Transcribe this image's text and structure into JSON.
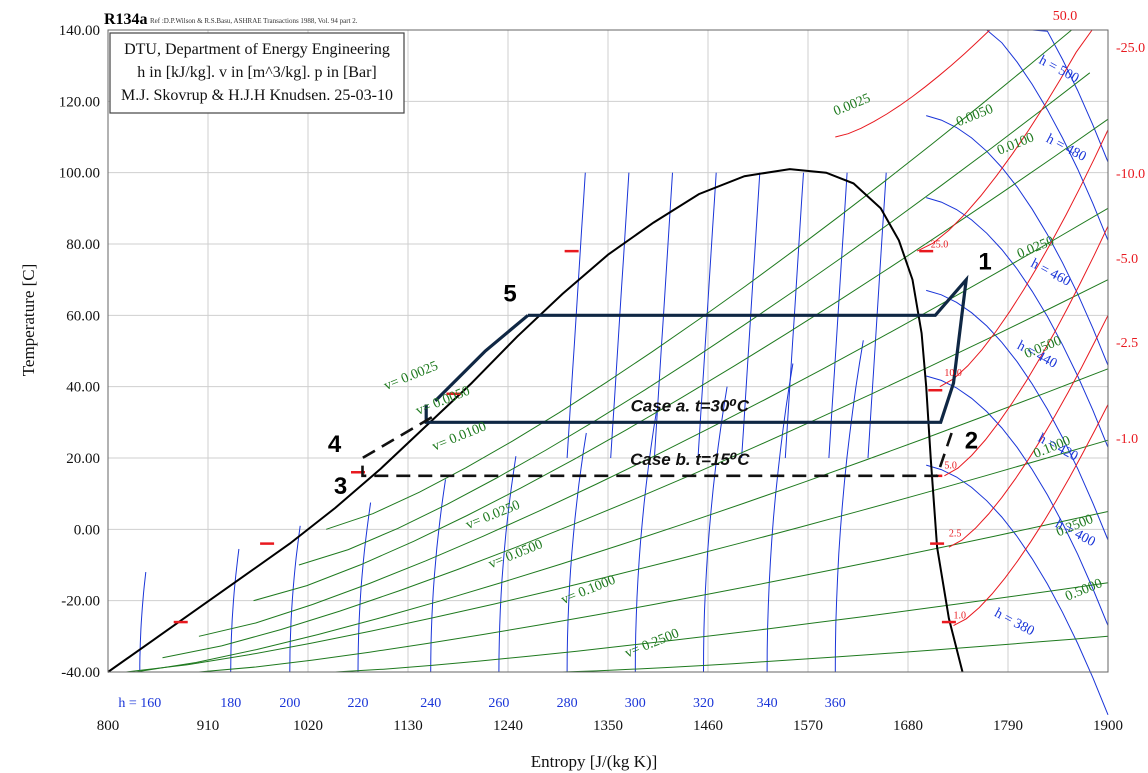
{
  "chart_data": {
    "type": "line",
    "title": "R134a",
    "reference": "Ref :D.P.Wilson & R.S.Basu, ASHRAE Transactions 1988, Vol. 94 part 2.",
    "info_box": [
      "DTU, Department of Energy Engineering",
      "h in [kJ/kg]. v in [m^3/kg]. p in [Bar]",
      "M.J. Skovrup & H.J.H Knudsen. 25-03-10"
    ],
    "xlabel": "Entropy [J/(kg K)]",
    "ylabel": "Temperature [C]",
    "xlim": [
      800,
      1900
    ],
    "ylim": [
      -40,
      140
    ],
    "grid": true,
    "x_ticks": [
      {
        "v": 800,
        "label": "800"
      },
      {
        "v": 910,
        "label": "910"
      },
      {
        "v": 1020,
        "label": "1020"
      },
      {
        "v": 1130,
        "label": "1130"
      },
      {
        "v": 1240,
        "label": "1240"
      },
      {
        "v": 1350,
        "label": "1350"
      },
      {
        "v": 1460,
        "label": "1460"
      },
      {
        "v": 1570,
        "label": "1570"
      },
      {
        "v": 1680,
        "label": "1680"
      },
      {
        "v": 1790,
        "label": "1790"
      },
      {
        "v": 1900,
        "label": "1900"
      }
    ],
    "y_ticks": [
      {
        "v": -40,
        "label": "-40.00"
      },
      {
        "v": -20,
        "label": "-20.00"
      },
      {
        "v": 0,
        "label": "0.00"
      },
      {
        "v": 20,
        "label": "20.00"
      },
      {
        "v": 40,
        "label": "40.00"
      },
      {
        "v": 60,
        "label": "60.00"
      },
      {
        "v": 80,
        "label": "80.00"
      },
      {
        "v": 100,
        "label": "100.00"
      },
      {
        "v": 120,
        "label": "120.00"
      },
      {
        "v": 140,
        "label": "140.00"
      }
    ],
    "enthalpy_bottom_labels": [
      {
        "s": 835,
        "label": "h = 160"
      },
      {
        "s": 935,
        "label": "180"
      },
      {
        "s": 1000,
        "label": "200"
      },
      {
        "s": 1075,
        "label": "220"
      },
      {
        "s": 1155,
        "label": "240"
      },
      {
        "s": 1230,
        "label": "260"
      },
      {
        "s": 1305,
        "label": "280"
      },
      {
        "s": 1380,
        "label": "300"
      },
      {
        "s": 1455,
        "label": "320"
      },
      {
        "s": 1525,
        "label": "340"
      },
      {
        "s": 1600,
        "label": "360"
      }
    ],
    "pressure_right_labels": [
      {
        "t": 141,
        "label": "50.0",
        "side": "top"
      },
      {
        "t": 135,
        "label": "25.0"
      },
      {
        "t": 100,
        "label": "10.0"
      },
      {
        "t": 72,
        "label": "5.0"
      },
      {
        "t": 52,
        "label": "2.5"
      },
      {
        "t": 26,
        "label": "1.0"
      }
    ],
    "enthalpy_right_labels": [
      {
        "s": 1844,
        "t": 128,
        "label": "h = 500"
      },
      {
        "s": 1852,
        "t": 106,
        "label": "h = 480"
      },
      {
        "s": 1835,
        "t": 71,
        "label": "h = 460"
      },
      {
        "s": 1820,
        "t": 48,
        "label": "h = 440"
      },
      {
        "s": 1843,
        "t": 22,
        "label": "h = 420"
      },
      {
        "s": 1862,
        "t": -2,
        "label": "h = 400"
      },
      {
        "s": 1795,
        "t": -27,
        "label": "h = 380"
      }
    ],
    "specific_volume_labels": [
      {
        "s": 1135,
        "t": 42,
        "label": "v= 0.0025"
      },
      {
        "s": 1170,
        "t": 35,
        "label": "v= 0.0050"
      },
      {
        "s": 1188,
        "t": 25,
        "label": "v= 0.0100"
      },
      {
        "s": 1225,
        "t": 3,
        "label": "v= 0.0250"
      },
      {
        "s": 1250,
        "t": -8,
        "label": "v= 0.0500"
      },
      {
        "s": 1330,
        "t": -18,
        "label": "v= 0.1000"
      },
      {
        "s": 1400,
        "t": -33,
        "label": "v= 0.2500"
      },
      {
        "s": 1620,
        "t": 118,
        "label": "0.0025"
      },
      {
        "s": 1755,
        "t": 115,
        "label": "0.0050"
      },
      {
        "s": 1800,
        "t": 107,
        "label": "0.0100"
      },
      {
        "s": 1822,
        "t": 78,
        "label": "0.0250"
      },
      {
        "s": 1830,
        "t": 50,
        "label": "0.0500"
      },
      {
        "s": 1840,
        "t": 22,
        "label": "0.1000"
      },
      {
        "s": 1865,
        "t": 0,
        "label": "0.2500"
      },
      {
        "s": 1875,
        "t": -18,
        "label": "0.5000"
      }
    ],
    "isobar_pressure_marks": [
      {
        "s": 1705,
        "t": 79,
        "label": "25.0"
      },
      {
        "s": 1720,
        "t": 43,
        "label": "10.0"
      },
      {
        "s": 1720,
        "t": 17,
        "label": "5.0"
      },
      {
        "s": 1725,
        "t": -2,
        "label": "2.5"
      },
      {
        "s": 1730,
        "t": -25,
        "label": "1.0"
      }
    ],
    "series": [
      {
        "name": "Saturation dome",
        "x": [
          800,
          850,
          900,
          950,
          1000,
          1050,
          1100,
          1150,
          1200,
          1250,
          1300,
          1350,
          1400,
          1450,
          1500,
          1550,
          1590,
          1620,
          1650,
          1670,
          1685,
          1695,
          1700,
          1705,
          1712,
          1725,
          1740
        ],
        "y": [
          -40,
          -31,
          -22,
          -13,
          -4,
          6,
          17,
          29,
          41,
          54,
          66,
          77,
          86,
          94,
          99,
          101,
          100,
          97,
          90,
          81,
          70,
          55,
          40,
          20,
          -5,
          -25,
          -40
        ]
      },
      {
        "name": "Case a. t=30⁰C",
        "x": [
          1262,
          1710,
          1744,
          1730,
          1716,
          1150,
          1150
        ],
        "y": [
          60,
          60,
          70,
          41,
          30,
          30,
          35
        ]
      },
      {
        "name": "Case b. t=15⁰C",
        "x": [
          1728,
          1712,
          1080,
          1080,
          1160
        ],
        "y": [
          27,
          15,
          15,
          20,
          32
        ]
      }
    ],
    "points": [
      {
        "label": "1",
        "s": 1745,
        "t": 70
      },
      {
        "label": "2",
        "s": 1730,
        "t": 30
      },
      {
        "label": "3",
        "s": 1080,
        "t": 15
      },
      {
        "label": "4",
        "s": 1080,
        "t": 20
      },
      {
        "label": "5",
        "s": 1262,
        "t": 60
      }
    ],
    "annotations": [
      {
        "text": "Case a. t=30⁰C",
        "s": 1440,
        "t": 33
      },
      {
        "text": "Case b. t=15⁰C",
        "s": 1440,
        "t": 18
      }
    ],
    "colors": {
      "dome": "#000000",
      "cycle": "#0f2744",
      "isentalpic": "#1a35d8",
      "isochoric": "#1f7a1f",
      "isobar": "#e8191f",
      "grid": "#cfcfcf"
    }
  }
}
